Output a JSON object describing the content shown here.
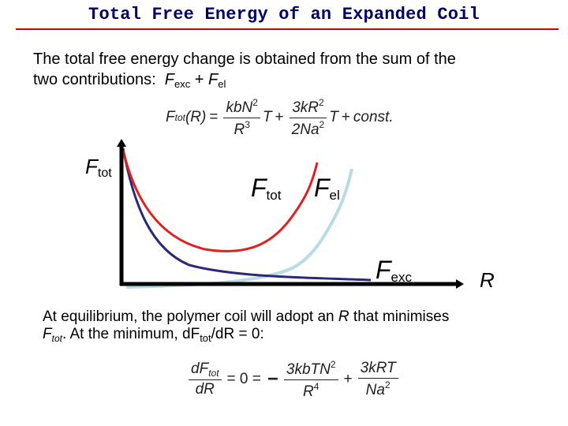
{
  "title": "Total Free Energy of an Expanded Coil",
  "intro": {
    "line1": "The total free energy change is obtained from the sum of the",
    "line2_prefix": "two contributions:",
    "term1_F": "F",
    "term1_sub": "exc",
    "plus": "+",
    "term2_F": "F",
    "term2_sub": "el"
  },
  "equation1": {
    "lhs_F": "F",
    "lhs_sub": "tot",
    "lhs_arg": "(R)",
    "equals": "=",
    "frac1_num": "kbN",
    "frac1_num_exp": "2",
    "frac1_den": "R",
    "frac1_den_exp": "3",
    "T1": "T",
    "plus1": "+",
    "frac2_num": "3kR",
    "frac2_num_exp": "2",
    "frac2_den": "2Na",
    "frac2_den_exp": "2",
    "T2": "T",
    "plus2": "+",
    "const": "const."
  },
  "plot_labels": {
    "ftot_axis": {
      "F": "F",
      "sub": "tot"
    },
    "ftot_curve": {
      "F": "F",
      "sub": "tot"
    },
    "fel": {
      "F": "F",
      "sub": "el"
    },
    "fexc": {
      "F": "F",
      "sub": "exc"
    },
    "r_axis": "R"
  },
  "conclusion": {
    "line1_a": "At equilibrium, the polymer coil will adopt an",
    "line1_R": "R",
    "line1_b": "that minimises",
    "line2_F": "F",
    "line2_F_sub": "tot",
    "line2_b": ".  At the minimum, dF",
    "line2_sub": "tot",
    "line2_c": "/dR = 0:"
  },
  "equation2": {
    "lhs_num": "dF",
    "lhs_num_sub": "tot",
    "lhs_den": "dR",
    "eq": "= 0 =",
    "minus": "−",
    "frac1_num": "3kbTN",
    "frac1_num_exp": "2",
    "frac1_den": "R",
    "frac1_den_exp": "4",
    "plus": "+",
    "frac2_num": "3kRT",
    "frac2_den": "Na",
    "frac2_den_exp": "2"
  },
  "colors": {
    "title": "#000066",
    "title_rule": "#cc0000",
    "ftot_curve": "#dd2222",
    "fexc_curve": "#2a2a7a",
    "fel_curve": "#b8dce6",
    "axes": "#000000"
  }
}
